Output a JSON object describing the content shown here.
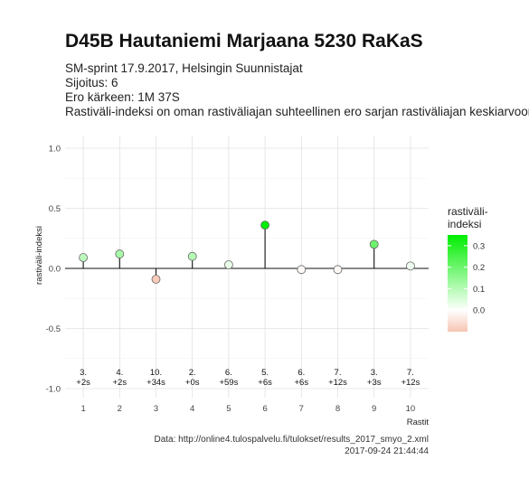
{
  "header": {
    "title": "D45B Hautaniemi Marjaana 5230 RaKaS",
    "subtitle_lines": [
      "SM-sprint 17.9.2017, Helsingin Suunnistajat",
      "Sijoitus: 6",
      "Ero kärkeen: 1M 37S",
      "Rastiväli-indeksi on oman rastiväliajan suhteellinen ero sarjan rastiväliajan keskiarvoon"
    ]
  },
  "footer": {
    "source": "Data: http://online4.tulospalvelu.fi/tulokset/results_2017_smyo_2.xml",
    "timestamp": "2017-09-24 21:44:44"
  },
  "chart_data": {
    "type": "scatter",
    "xlabel": "Rastit",
    "ylabel": "rastiväli-indeksi",
    "x": [
      1,
      2,
      3,
      4,
      5,
      6,
      7,
      8,
      9,
      10
    ],
    "x_ticks": [
      "1",
      "2",
      "3",
      "4",
      "5",
      "6",
      "7",
      "8",
      "9",
      "10"
    ],
    "y_ticks": [
      "1.0",
      "0.5",
      "0.0",
      "-0.5",
      "-1.0"
    ],
    "ylim": [
      -1.0,
      1.0
    ],
    "xlim": [
      0.5,
      10.5
    ],
    "grid": true,
    "values": [
      0.09,
      0.12,
      -0.09,
      0.1,
      0.03,
      0.36,
      -0.01,
      -0.01,
      0.2,
      0.02
    ],
    "rank_labels": [
      "3.",
      "4.",
      "10.",
      "2.",
      "6.",
      "5.",
      "6.",
      "7.",
      "3.",
      "7."
    ],
    "diff_labels": [
      "+2s",
      "+2s",
      "+34s",
      "+0s",
      "+59s",
      "+6s",
      "+6s",
      "+12s",
      "+3s",
      "+12s"
    ],
    "legend": {
      "title_lines": [
        "rastiväli-",
        "indeksi"
      ],
      "ticks": [
        "0.3",
        "0.2",
        "0.1",
        "0.0"
      ],
      "tick_values": [
        0.3,
        0.2,
        0.1,
        0.0
      ],
      "range": [
        -0.1,
        0.35
      ],
      "position": "right"
    },
    "colors": {
      "high": "#00ee00",
      "mid": "#ffffff",
      "low": "#f7c5b3"
    }
  }
}
